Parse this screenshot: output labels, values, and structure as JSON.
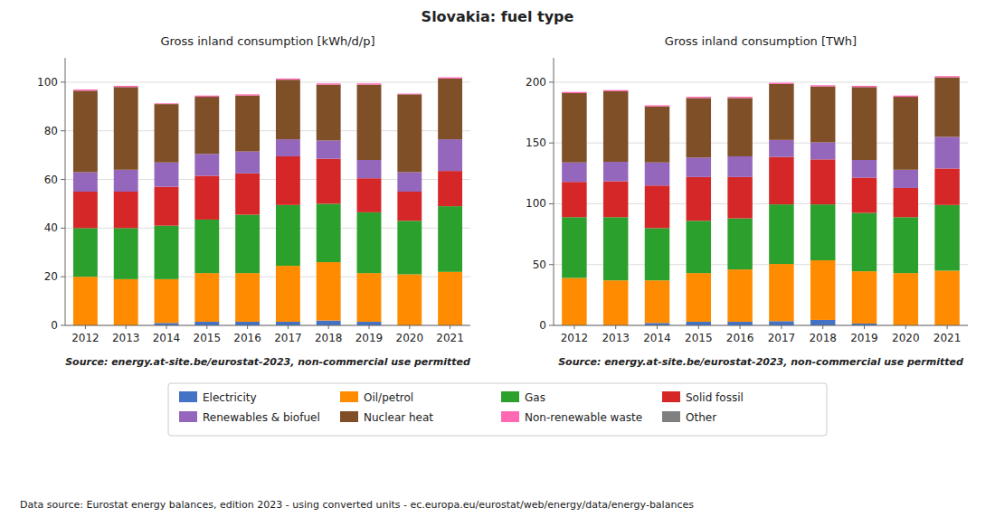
{
  "title": "Slovakia: fuel type",
  "annotations": [
    "Data source: Eurostat energy balances, edition 2023 - using converted units - ec.europa.eu/eurostat/web/energy/data/energy-balances"
  ],
  "chart_data": [
    {
      "type": "bar",
      "stacked": true,
      "title": "Gross inland consumption [kWh/d/p]",
      "categories": [
        "2012",
        "2013",
        "2014",
        "2015",
        "2016",
        "2017",
        "2018",
        "2019",
        "2020",
        "2021"
      ],
      "series": [
        {
          "name": "Electricity",
          "color": "#4472c4",
          "values": [
            0.0,
            0.0,
            1.0,
            1.5,
            1.5,
            1.5,
            2.0,
            1.5,
            0.0,
            0.0
          ]
        },
        {
          "name": "Oil/petrol",
          "color": "#ff8c00",
          "values": [
            20.0,
            19.0,
            18.0,
            20.0,
            20.0,
            23.0,
            24.0,
            20.0,
            21.0,
            22.0
          ]
        },
        {
          "name": "Gas",
          "color": "#2ca02c",
          "values": [
            20.0,
            21.0,
            22.0,
            22.0,
            24.0,
            25.0,
            24.0,
            25.0,
            22.0,
            27.0
          ]
        },
        {
          "name": "Solid fossil",
          "color": "#d62728",
          "values": [
            15.0,
            15.0,
            16.0,
            18.0,
            17.0,
            20.0,
            18.5,
            14.0,
            12.0,
            14.5
          ]
        },
        {
          "name": "Renewables & biofuel",
          "color": "#9467bd",
          "values": [
            8.0,
            9.0,
            10.0,
            9.0,
            9.0,
            7.0,
            7.5,
            7.5,
            8.0,
            13.0
          ]
        },
        {
          "name": "Nuclear heat",
          "color": "#7f4f28",
          "values": [
            33.5,
            34.0,
            24.0,
            23.5,
            23.0,
            24.5,
            23.0,
            31.0,
            32.0,
            25.0
          ]
        },
        {
          "name": "Non-renewable waste",
          "color": "#ff69b4",
          "values": [
            0.5,
            0.5,
            0.3,
            0.5,
            0.5,
            0.5,
            0.5,
            0.5,
            0.3,
            0.5
          ]
        },
        {
          "name": "Other",
          "color": "#808080",
          "values": [
            0.0,
            0.0,
            0.0,
            0.0,
            0.0,
            0.0,
            0.0,
            0.0,
            0.0,
            0.0
          ]
        }
      ],
      "ylim": [
        0,
        110
      ],
      "yticks": [
        0,
        20,
        40,
        60,
        80,
        100
      ],
      "grid": true,
      "legend": "bottom",
      "annotations": [
        "Source: energy.at-site.be/eurostat-2023, non-commercial use permitted"
      ]
    },
    {
      "type": "bar",
      "stacked": true,
      "title": "Gross inland consumption [TWh]",
      "categories": [
        "2012",
        "2013",
        "2014",
        "2015",
        "2016",
        "2017",
        "2018",
        "2019",
        "2020",
        "2021"
      ],
      "series": [
        {
          "name": "Electricity",
          "color": "#4472c4",
          "values": [
            0.0,
            0.0,
            2.0,
            3.0,
            3.0,
            3.5,
            4.5,
            1.5,
            0.0,
            0.0
          ]
        },
        {
          "name": "Oil/petrol",
          "color": "#ff8c00",
          "values": [
            39.0,
            37.0,
            35.0,
            40.0,
            43.0,
            47.0,
            49.0,
            43.0,
            43.0,
            45.0
          ]
        },
        {
          "name": "Gas",
          "color": "#2ca02c",
          "values": [
            50.0,
            52.0,
            43.0,
            43.0,
            42.0,
            49.0,
            46.0,
            48.0,
            46.0,
            54.0
          ]
        },
        {
          "name": "Solid fossil",
          "color": "#d62728",
          "values": [
            29.0,
            29.5,
            35.0,
            36.0,
            34.0,
            39.0,
            37.0,
            29.0,
            24.0,
            30.0
          ]
        },
        {
          "name": "Renewables & biofuel",
          "color": "#9467bd",
          "values": [
            16.0,
            16.0,
            19.0,
            16.0,
            17.0,
            14.0,
            14.0,
            14.5,
            15.0,
            26.0
          ]
        },
        {
          "name": "Nuclear heat",
          "color": "#7f4f28",
          "values": [
            57.0,
            58.0,
            46.0,
            49.0,
            48.0,
            46.0,
            46.0,
            60.0,
            60.0,
            49.0
          ]
        },
        {
          "name": "Non-renewable waste",
          "color": "#ff69b4",
          "values": [
            1.0,
            1.0,
            1.0,
            1.0,
            1.0,
            1.0,
            1.0,
            1.0,
            1.0,
            1.0
          ]
        },
        {
          "name": "Other",
          "color": "#808080",
          "values": [
            0.0,
            0.0,
            0.0,
            0.0,
            0.0,
            0.0,
            0.0,
            0.0,
            0.0,
            0.0
          ]
        }
      ],
      "ylim": [
        0,
        220
      ],
      "yticks": [
        0,
        50,
        100,
        150,
        200
      ],
      "grid": true,
      "annotations": [
        "Source: energy.at-site.be/eurostat-2023, non-commercial use permitted"
      ]
    }
  ]
}
